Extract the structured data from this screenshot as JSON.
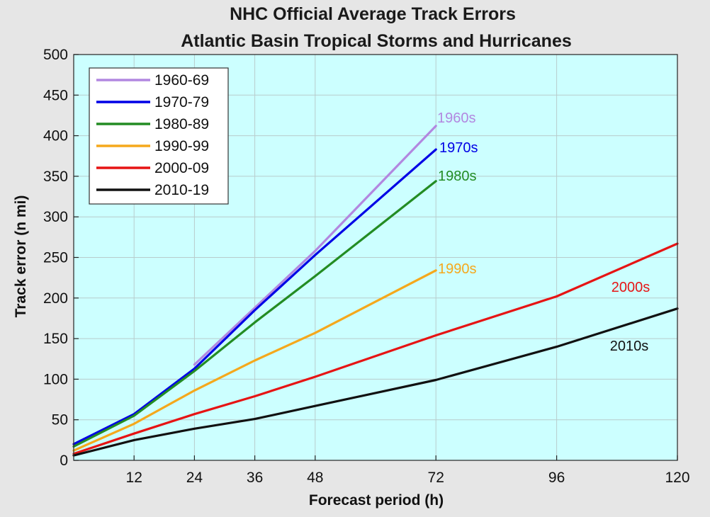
{
  "chart_data": {
    "type": "line",
    "title": "NHC Official Average Track Errors",
    "subtitle": "Atlantic Basin Tropical Storms and Hurricanes",
    "xlabel": "Forecast period (h)",
    "ylabel": "Track error (n mi)",
    "xlim": [
      0,
      120
    ],
    "ylim": [
      0,
      500
    ],
    "x_ticks": [
      12,
      24,
      36,
      48,
      72,
      96,
      120
    ],
    "y_ticks": [
      0,
      50,
      100,
      150,
      200,
      250,
      300,
      350,
      400,
      450,
      500
    ],
    "grid": true,
    "background_color": "#ccffff",
    "legend_position": "top-left",
    "series": [
      {
        "name": "1960-69",
        "color": "#b287e0",
        "annotation": "1960s",
        "x": [
          24,
          48,
          72
        ],
        "y": [
          118,
          258,
          412
        ]
      },
      {
        "name": "1970-79",
        "color": "#0000e6",
        "annotation": "1970s",
        "x": [
          0,
          12,
          24,
          36,
          48,
          72
        ],
        "y": [
          20,
          57,
          113,
          185,
          253,
          383
        ]
      },
      {
        "name": "1980-89",
        "color": "#238c23",
        "annotation": "1980s",
        "x": [
          0,
          12,
          24,
          36,
          48,
          72
        ],
        "y": [
          17,
          55,
          110,
          170,
          227,
          344
        ]
      },
      {
        "name": "1990-99",
        "color": "#f5a81c",
        "annotation": "1990s",
        "x": [
          0,
          12,
          24,
          36,
          48,
          72
        ],
        "y": [
          12,
          45,
          86,
          123,
          157,
          234
        ]
      },
      {
        "name": "2000-09",
        "color": "#e61414",
        "annotation": "2000s",
        "x": [
          0,
          12,
          24,
          36,
          48,
          72,
          96,
          120
        ],
        "y": [
          8,
          33,
          57,
          79,
          103,
          154,
          202,
          267
        ]
      },
      {
        "name": "2010-19",
        "color": "#111111",
        "annotation": "2010s",
        "x": [
          0,
          12,
          24,
          36,
          48,
          72,
          96,
          120
        ],
        "y": [
          6,
          25,
          39,
          51,
          67,
          99,
          140,
          187
        ]
      }
    ]
  }
}
